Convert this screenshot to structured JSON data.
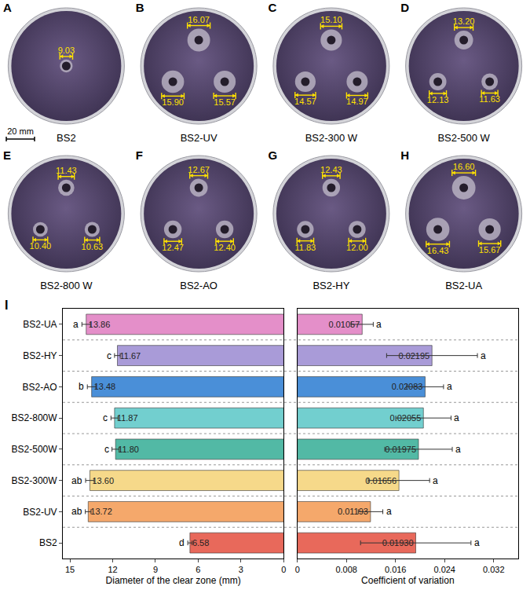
{
  "panels": [
    {
      "letter": "A",
      "caption": "BS2",
      "zones": [
        {
          "value": 9.03,
          "label": "9.03"
        }
      ]
    },
    {
      "letter": "B",
      "caption": "BS2-UV",
      "zones": [
        {
          "value": 16.07,
          "label": "16.07"
        },
        {
          "value": 15.9,
          "label": "15.90"
        },
        {
          "value": 15.57,
          "label": "15.57"
        }
      ]
    },
    {
      "letter": "C",
      "caption": "BS2-300 W",
      "zones": [
        {
          "value": 15.1,
          "label": "15.10"
        },
        {
          "value": 14.57,
          "label": "14.57"
        },
        {
          "value": 14.97,
          "label": "14.97"
        }
      ]
    },
    {
      "letter": "D",
      "caption": "BS2-500 W",
      "zones": [
        {
          "value": 13.2,
          "label": "13.20"
        },
        {
          "value": 12.13,
          "label": "12.13"
        },
        {
          "value": 11.63,
          "label": "11.63"
        }
      ]
    },
    {
      "letter": "E",
      "caption": "BS2-800 W",
      "zones": [
        {
          "value": 11.43,
          "label": "11.43"
        },
        {
          "value": 10.4,
          "label": "10.40"
        },
        {
          "value": 10.63,
          "label": "10.63"
        }
      ]
    },
    {
      "letter": "F",
      "caption": "BS2-AO",
      "zones": [
        {
          "value": 12.67,
          "label": "12.67"
        },
        {
          "value": 12.47,
          "label": "12.47"
        },
        {
          "value": 12.4,
          "label": "12.40"
        }
      ]
    },
    {
      "letter": "G",
      "caption": "BS2-HY",
      "zones": [
        {
          "value": 12.43,
          "label": "12.43"
        },
        {
          "value": 11.83,
          "label": "11.83"
        },
        {
          "value": 12.0,
          "label": "12.00"
        }
      ]
    },
    {
      "letter": "H",
      "caption": "BS2-UA",
      "zones": [
        {
          "value": 16.6,
          "label": "16.60"
        },
        {
          "value": 16.43,
          "label": "16.43"
        },
        {
          "value": 15.67,
          "label": "15.67"
        }
      ]
    }
  ],
  "scale_bar": {
    "value": 20,
    "label": "20 mm"
  },
  "chart_letter": "I",
  "chart_data": [
    {
      "type": "bar",
      "orientation": "horizontal",
      "categories": [
        "BS2",
        "BS2-UV",
        "BS2-300W",
        "BS2-500W",
        "BS2-800W",
        "BS2-AO",
        "BS2-HY",
        "BS2-UA"
      ],
      "values": [
        6.58,
        13.72,
        13.6,
        11.8,
        11.87,
        13.48,
        11.67,
        13.86
      ],
      "value_labels": [
        "6.58",
        "13.72",
        "13.60",
        "11.80",
        "11.87",
        "13.48",
        "11.67",
        "13.86"
      ],
      "errors": [
        0.15,
        0.2,
        0.3,
        0.25,
        0.25,
        0.3,
        0.2,
        0.3
      ],
      "letters": [
        "d",
        "ab",
        "ab",
        "c",
        "c",
        "b",
        "c",
        "a"
      ],
      "colors": [
        "#e8695b",
        "#f5a86b",
        "#f6d98a",
        "#52b9a5",
        "#72cfcf",
        "#4a8fd8",
        "#a99bd8",
        "#e48fc9"
      ],
      "x_label": "Diameter of the clear zone (mm)",
      "xlim": [
        15.5,
        0
      ],
      "xticks": [
        15,
        12,
        9,
        6,
        3,
        0
      ],
      "data_labels": true,
      "tick_labels": true
    },
    {
      "type": "bar",
      "orientation": "horizontal",
      "categories": [
        "BS2",
        "BS2-UV",
        "BS2-300W",
        "BS2-500W",
        "BS2-800W",
        "BS2-AO",
        "BS2-HY",
        "BS2-UA"
      ],
      "values": [
        0.0193,
        0.01193,
        0.01656,
        0.01975,
        0.02055,
        0.02083,
        0.02195,
        0.01057
      ],
      "value_labels": [
        "0.01930",
        "0.01193",
        "0.01656",
        "0.01975",
        "0.02055",
        "0.02083",
        "0.02195",
        "0.01057"
      ],
      "errors": [
        0.009,
        0.002,
        0.005,
        0.0055,
        0.0045,
        0.003,
        0.0074,
        0.0018
      ],
      "letters": [
        "a",
        "a",
        "a",
        "a",
        "a",
        "a",
        "a",
        "a"
      ],
      "colors": [
        "#e8695b",
        "#f5a86b",
        "#f6d98a",
        "#52b9a5",
        "#72cfcf",
        "#4a8fd8",
        "#a99bd8",
        "#e48fc9"
      ],
      "x_label": "Coefficient of variation",
      "xlim": [
        0,
        0.036
      ],
      "xticks": [
        0,
        0.008,
        0.016,
        0.024,
        0.032
      ],
      "data_labels": true,
      "tick_labels": "x"
    }
  ]
}
